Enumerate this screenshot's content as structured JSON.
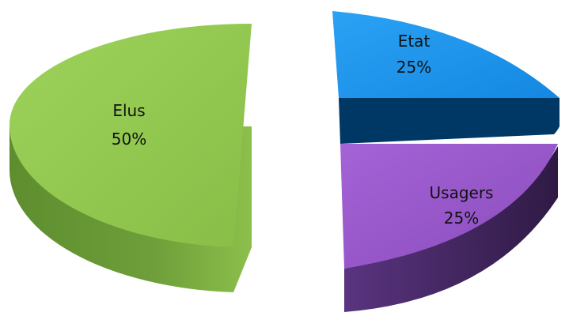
{
  "chart_data": {
    "type": "pie",
    "title": "",
    "legend": "none",
    "three_d": true,
    "exploded": true,
    "slices": [
      {
        "label": "Elus",
        "value": 50,
        "percent_label": "50%",
        "color": "#92c94f",
        "side_color": "#6a9a36"
      },
      {
        "label": "Etat",
        "value": 25,
        "percent_label": "25%",
        "color": "#1e96ee",
        "side_color": "#003865"
      },
      {
        "label": "Usagers",
        "value": 25,
        "percent_label": "25%",
        "color": "#9a58cd",
        "side_color": "#3d2155"
      }
    ]
  }
}
